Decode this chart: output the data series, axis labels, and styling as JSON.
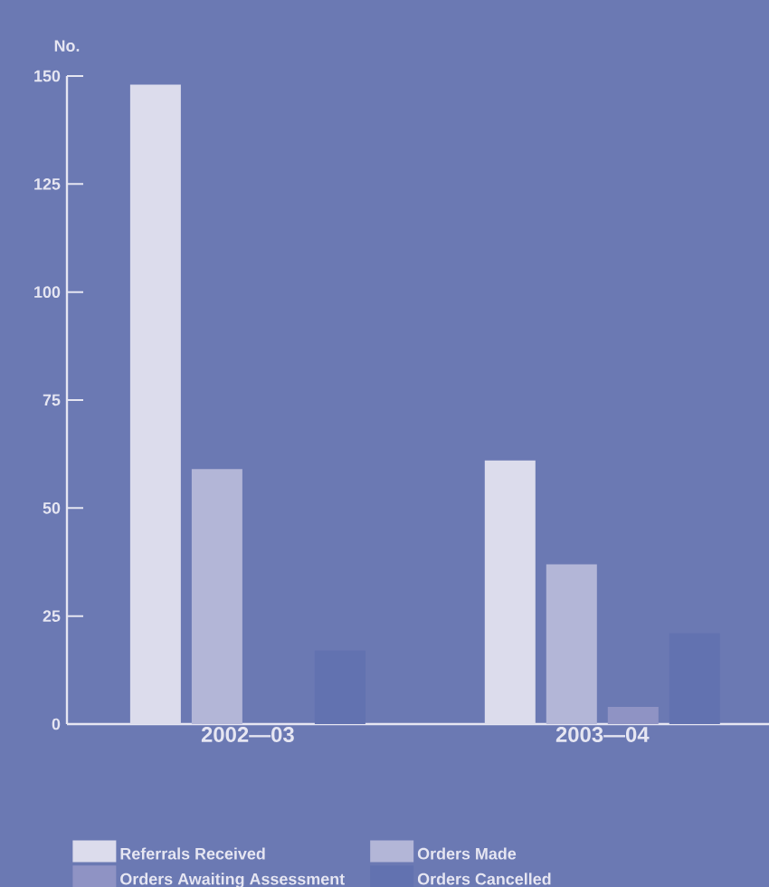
{
  "chart_data": {
    "type": "bar",
    "ylabel": "No.",
    "categories": [
      "2002—03",
      "2003—04"
    ],
    "series": [
      {
        "name": "Referrals Received",
        "color": "#dcdcec",
        "values": [
          148,
          61
        ]
      },
      {
        "name": "Orders Made",
        "color": "#b3b6d7",
        "values": [
          59,
          37
        ]
      },
      {
        "name": "Orders Awaiting Assessment",
        "color": "#8f93c4",
        "values": [
          0,
          4
        ]
      },
      {
        "name": "Orders Cancelled",
        "color": "#6272b0",
        "values": [
          17,
          21
        ]
      }
    ],
    "ylim": [
      0,
      150
    ],
    "yticks": [
      0,
      25,
      50,
      75,
      100,
      125,
      150
    ],
    "legend": "bottom",
    "grid": false
  }
}
